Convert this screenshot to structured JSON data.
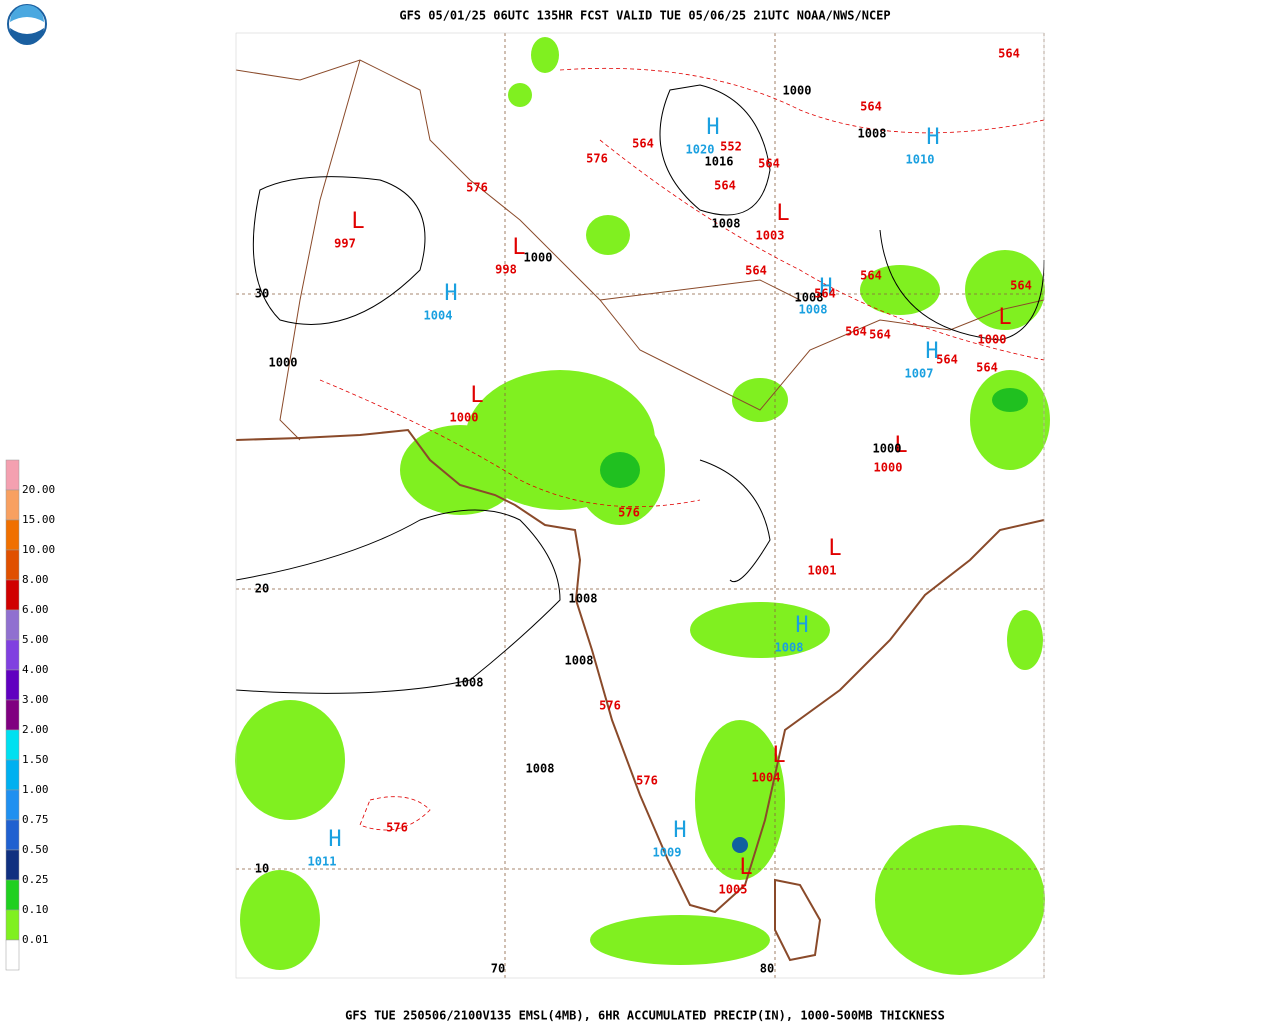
{
  "header": {
    "title": "GFS 05/01/25 06UTC 135HR FCST VALID TUE 05/06/25 21UTC NOAA/NWS/NCEP"
  },
  "footer": {
    "text": "GFS TUE 250506/2100V135 EMSL(4MB), 6HR ACCUMULATED PRECIP(IN), 1000-500MB THICKNESS"
  },
  "legend": {
    "labels": [
      "20.00",
      "15.00",
      "10.00",
      "8.00",
      "6.00",
      "5.00",
      "4.00",
      "3.00",
      "2.00",
      "1.50",
      "1.00",
      "0.75",
      "0.50",
      "0.25",
      "0.10",
      "0.01"
    ]
  },
  "map": {
    "lat_labels": [
      "30",
      "20",
      "10"
    ],
    "lon_labels": [
      "70",
      "80"
    ],
    "pressure_centers": [
      {
        "symbol": "H",
        "value": 1020
      },
      {
        "symbol": "H",
        "value": 1010
      },
      {
        "symbol": "L",
        "value": 997
      },
      {
        "symbol": "L",
        "value": 998
      },
      {
        "symbol": "L",
        "value": 1003
      },
      {
        "symbol": "H",
        "value": 1004
      },
      {
        "symbol": "H",
        "value": 1008
      },
      {
        "symbol": "L",
        "value": 1000
      },
      {
        "symbol": "H",
        "value": 1007
      },
      {
        "symbol": "L",
        "value": 1000
      },
      {
        "symbol": "L",
        "value": 1000
      },
      {
        "symbol": "L",
        "value": 1001
      },
      {
        "symbol": "H",
        "value": 1008
      },
      {
        "symbol": "L",
        "value": 1004
      },
      {
        "symbol": "H",
        "value": 1009
      },
      {
        "symbol": "H",
        "value": 1011
      },
      {
        "symbol": "L",
        "value": 1005
      }
    ],
    "isobar_labels": [
      1000,
      1008,
      1016,
      1008,
      1000,
      1008,
      1000,
      1000,
      1008,
      1008,
      1008,
      1008
    ],
    "thickness_labels": [
      564,
      564,
      552,
      564,
      576,
      564,
      564,
      576,
      564,
      564,
      564,
      564,
      564,
      564,
      564,
      564,
      576,
      576,
      576,
      576
    ]
  }
}
